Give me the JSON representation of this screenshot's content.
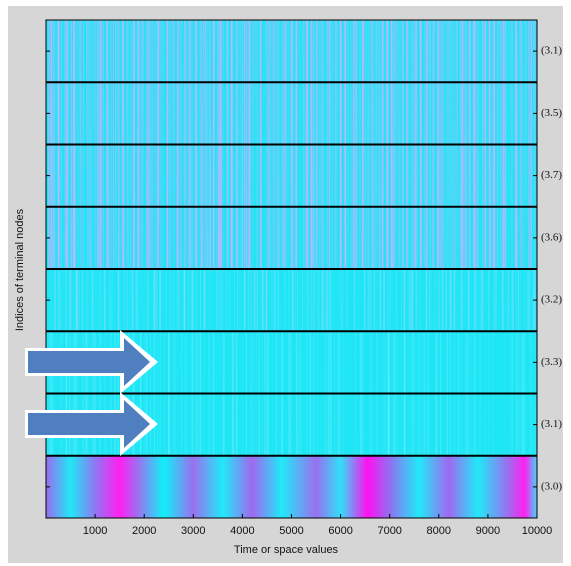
{
  "chart_data": {
    "type": "heatmap",
    "categories": [
      "(3.1)",
      "(3.5)",
      "(3.7)",
      "(3.6)",
      "(3.2)",
      "(3.3)",
      "(3.1)",
      "(3.0)"
    ],
    "xlim": [
      0,
      10000
    ],
    "xticks": [
      1000,
      2000,
      3000,
      4000,
      5000,
      6000,
      7000,
      8000,
      9000,
      10000
    ],
    "xlabel": "Time or space values",
    "ylabel": "Indices of terminal nodes"
  }
}
